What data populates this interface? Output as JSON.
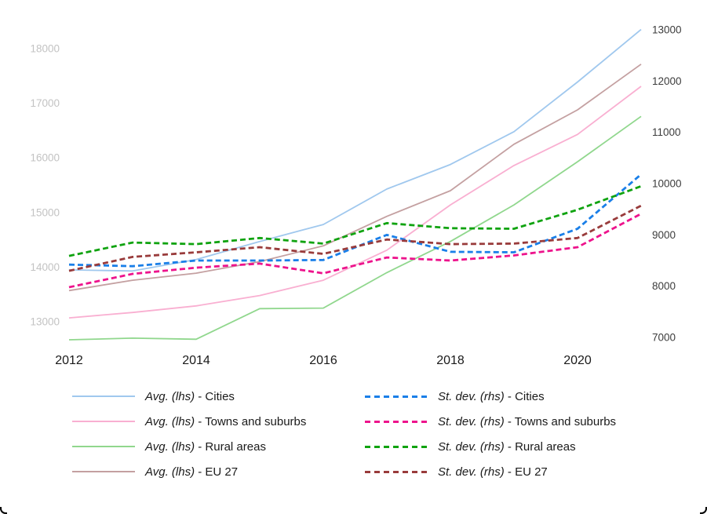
{
  "chart_data": {
    "type": "line",
    "x": [
      2012,
      2013,
      2014,
      2015,
      2016,
      2017,
      2018,
      2019,
      2020,
      2021
    ],
    "x_axis": {
      "ticks": [
        2012,
        2014,
        2016,
        2018,
        2020
      ],
      "color": "#1a1a1a"
    },
    "left_axis": {
      "ticks": [
        18000,
        17000,
        16000,
        15000,
        14000,
        13000
      ],
      "range": [
        12670,
        18350
      ],
      "color": "#c3c3c3"
    },
    "right_axis": {
      "ticks": [
        13000,
        12000,
        11000,
        10000,
        9000,
        8000,
        7000
      ],
      "range": [
        7000,
        13000
      ],
      "color": "#3c3c3c"
    },
    "grid": "off",
    "legend_position": "bottom",
    "series": [
      {
        "id": "avg_cities",
        "name": "Avg. (lhs) - Cities",
        "axis": "left",
        "style": "solid",
        "color": "#a0c8ee",
        "values": [
          13950,
          13930,
          14140,
          14470,
          14780,
          15430,
          15880,
          16480,
          17390,
          18350
        ]
      },
      {
        "id": "avg_towns",
        "name": "Avg. (lhs) - Towns and suburbs",
        "axis": "left",
        "style": "solid",
        "color": "#f9afd1",
        "values": [
          13070,
          13170,
          13290,
          13480,
          13760,
          14310,
          15140,
          15860,
          16430,
          17310
        ]
      },
      {
        "id": "avg_rural",
        "name": "Avg. (lhs) - Rural areas",
        "axis": "left",
        "style": "solid",
        "color": "#90d78d",
        "values": [
          12670,
          12700,
          12680,
          13240,
          13250,
          13900,
          14470,
          15140,
          15930,
          16760
        ]
      },
      {
        "id": "avg_eu27",
        "name": "Avg. (lhs) - EU 27",
        "axis": "left",
        "style": "solid",
        "color": "#c4a0a1",
        "values": [
          13570,
          13760,
          13890,
          14100,
          14390,
          14930,
          15400,
          16250,
          16880,
          17715
        ]
      },
      {
        "id": "sd_cities",
        "name": "St. dev. (rhs) - Cities",
        "axis": "right",
        "style": "dashed",
        "color": "#1a7fe8",
        "values": [
          8420,
          8390,
          8500,
          8500,
          8510,
          9000,
          8670,
          8660,
          9120,
          10180
        ]
      },
      {
        "id": "sd_towns",
        "name": "St. dev. (rhs) - Towns and suburbs",
        "axis": "right",
        "style": "dashed",
        "color": "#ed138c",
        "values": [
          7980,
          8240,
          8360,
          8440,
          8250,
          8560,
          8500,
          8600,
          8760,
          9410
        ]
      },
      {
        "id": "sd_rural",
        "name": "St. dev. (rhs) - Rural areas",
        "axis": "right",
        "style": "dashed",
        "color": "#10a310",
        "values": [
          8590,
          8850,
          8820,
          8940,
          8830,
          9230,
          9130,
          9120,
          9490,
          9950
        ]
      },
      {
        "id": "sd_eu27",
        "name": "St. dev. (rhs) - EU 27",
        "axis": "right",
        "style": "dashed",
        "color": "#993b3b",
        "values": [
          8300,
          8570,
          8660,
          8760,
          8630,
          8910,
          8820,
          8830,
          8940,
          9570
        ]
      }
    ]
  },
  "legend": {
    "rows": [
      {
        "series": "avg_cities",
        "prefix": "Avg. (lhs)",
        "suffix": " - Cities"
      },
      {
        "series": "avg_towns",
        "prefix": "Avg. (lhs)",
        "suffix": " - Towns and suburbs"
      },
      {
        "series": "avg_rural",
        "prefix": "Avg. (lhs)",
        "suffix": " - Rural areas"
      },
      {
        "series": "avg_eu27",
        "prefix": "Avg. (lhs)",
        "suffix": " - EU 27"
      },
      {
        "series": "sd_cities",
        "prefix": "St. dev. (rhs)",
        "suffix": " - Cities"
      },
      {
        "series": "sd_towns",
        "prefix": "St. dev. (rhs)",
        "suffix": " - Towns and suburbs"
      },
      {
        "series": "sd_rural",
        "prefix": "St. dev. (rhs)",
        "suffix": " - Rural areas"
      },
      {
        "series": "sd_eu27",
        "prefix": "St. dev. (rhs)",
        "suffix": " - EU 27"
      }
    ]
  }
}
